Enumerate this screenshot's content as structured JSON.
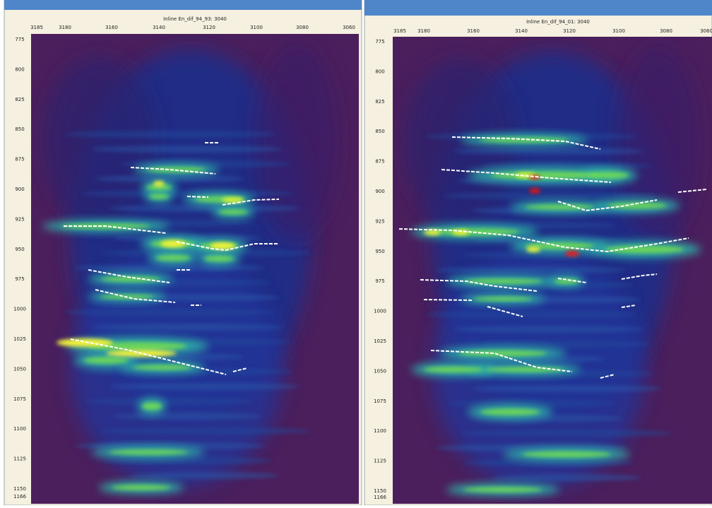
{
  "panels": [
    {
      "title": "Inline En_dif_94_93: 3040",
      "x_labels": [
        "3185",
        "3180",
        "3160",
        "3140",
        "3120",
        "3100",
        "3080",
        "3060"
      ],
      "y_labels": [
        "775",
        "800",
        "825",
        "850",
        "875",
        "900",
        "925",
        "950",
        "975",
        "1000",
        "1025",
        "1050",
        "1075",
        "1100",
        "1125",
        "1150",
        "1166"
      ]
    },
    {
      "title": "Inline En_dif_94_01: 3040",
      "x_labels": [
        "3185",
        "3180",
        "3160",
        "3140",
        "3120",
        "3100",
        "3080",
        "3060"
      ],
      "y_labels": [
        "775",
        "800",
        "825",
        "850",
        "875",
        "900",
        "925",
        "950",
        "975",
        "1000",
        "1025",
        "1050",
        "1075",
        "1100",
        "1125",
        "1150",
        "1166"
      ]
    }
  ]
}
